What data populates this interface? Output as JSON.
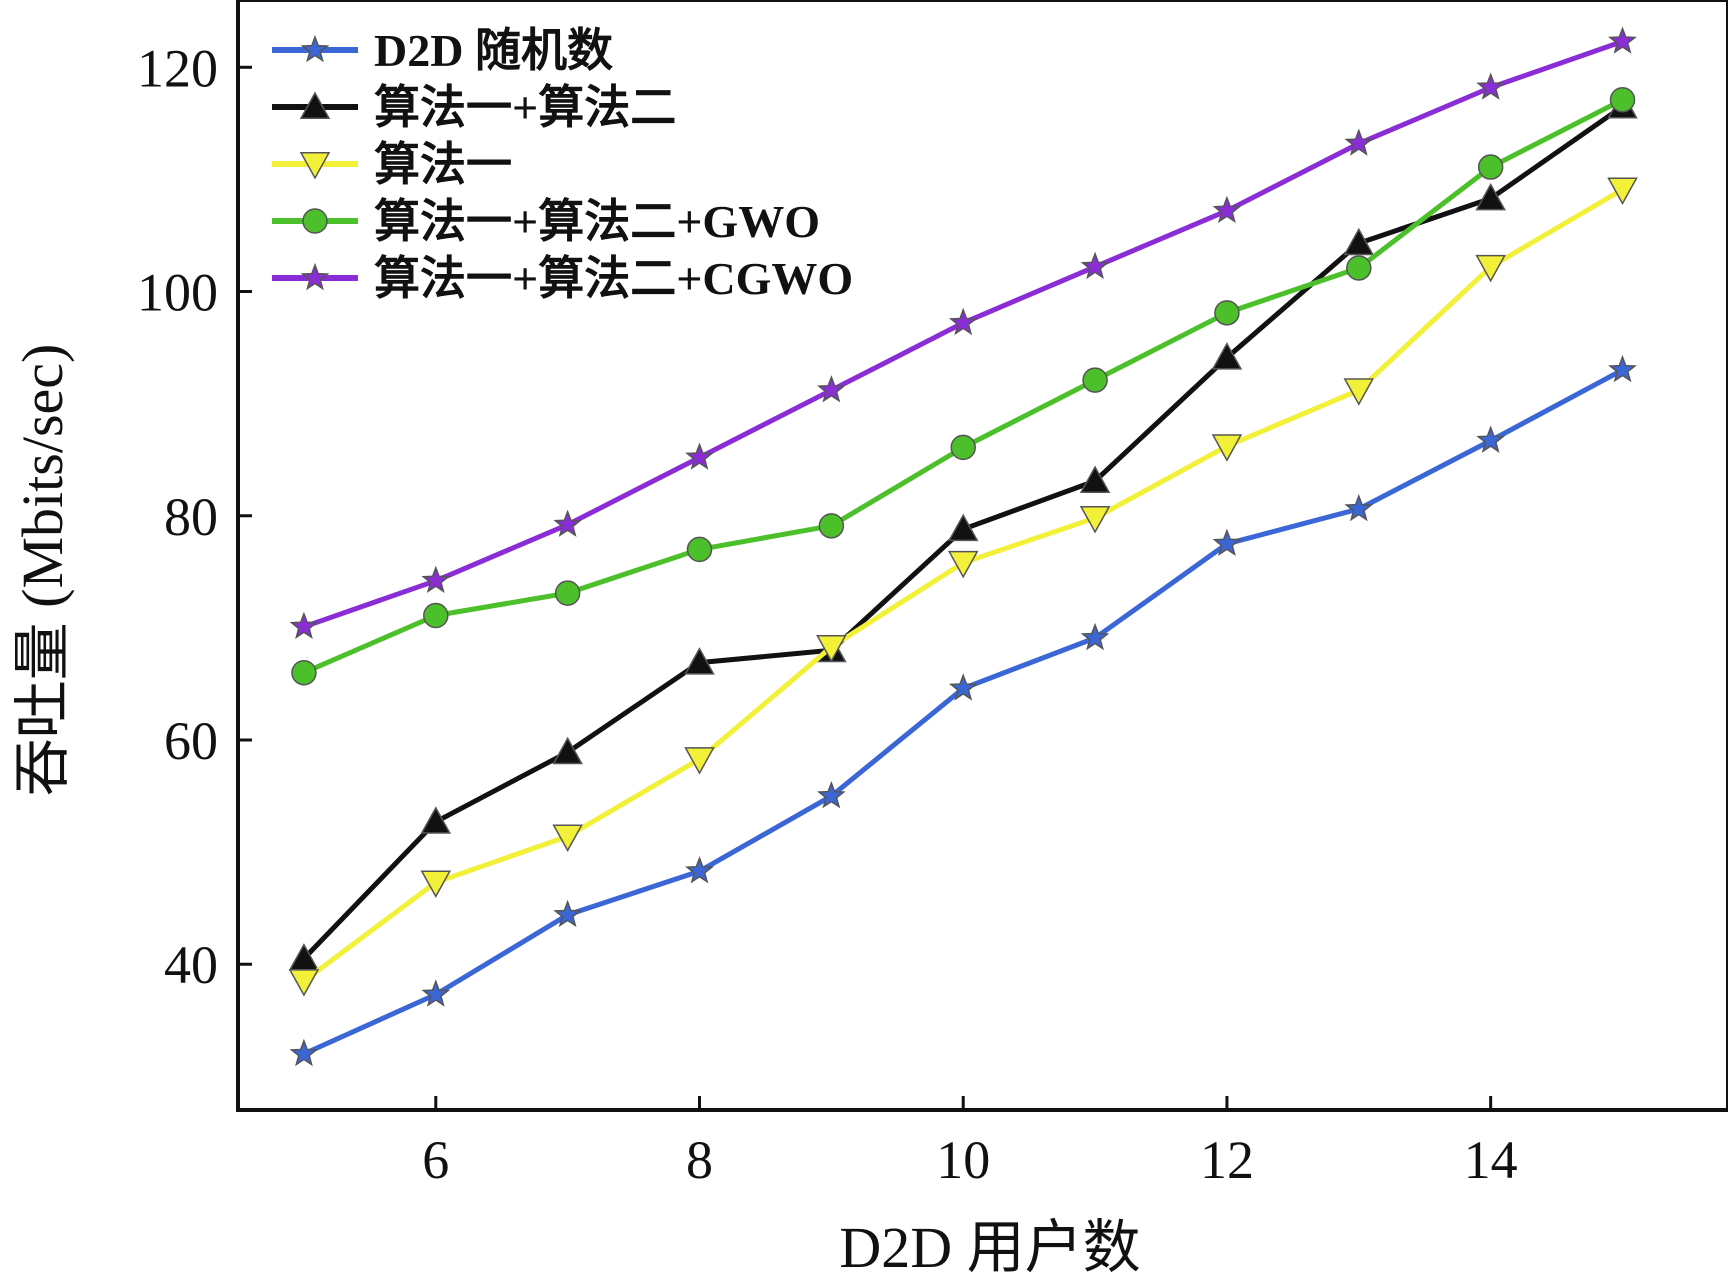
{
  "chart_data": {
    "type": "line",
    "xlabel": "D2D 用户数",
    "ylabel": "吞吐量 (Mbits/sec)",
    "x": [
      5,
      6,
      7,
      8,
      9,
      10,
      11,
      12,
      13,
      14,
      15
    ],
    "xlim": [
      4.5,
      15.8
    ],
    "ylim": [
      27,
      126
    ],
    "xticks": [
      6,
      8,
      10,
      12,
      14
    ],
    "yticks": [
      40,
      60,
      80,
      100,
      120
    ],
    "grid": false,
    "legend_position": "top-left",
    "series": [
      {
        "name": "D2D 随机数",
        "color": "#3a66d6",
        "marker": "star",
        "values": [
          32,
          37.3,
          44.4,
          48.3,
          55,
          64.6,
          69.1,
          77.5,
          80.6,
          86.7,
          93
        ]
      },
      {
        "name": "算法一+算法二",
        "color": "#111111",
        "marker": "triangle-up",
        "values": [
          40.5,
          52.7,
          58.9,
          66.9,
          68,
          78.8,
          83.1,
          94.1,
          104.3,
          108.3,
          116.5
        ]
      },
      {
        "name": "算法一",
        "color": "#f3f03a",
        "marker": "triangle-down",
        "values": [
          38.5,
          47.3,
          51.4,
          58.3,
          68.3,
          75.8,
          79.8,
          86.2,
          91.2,
          102.2,
          109.1
        ]
      },
      {
        "name": "算法一+算法二+GWO",
        "color": "#4cc02a",
        "marker": "circle",
        "values": [
          66,
          71.1,
          73.1,
          77,
          79.1,
          86.1,
          92.1,
          98.1,
          102.1,
          111.1,
          117.1
        ]
      },
      {
        "name": "算法一+算法二+CGWO",
        "color": "#8a2dd6",
        "marker": "star",
        "values": [
          70.1,
          74.2,
          79.2,
          85.2,
          91.2,
          97.2,
          102.2,
          107.2,
          113.2,
          118.2,
          122.3
        ]
      }
    ]
  }
}
